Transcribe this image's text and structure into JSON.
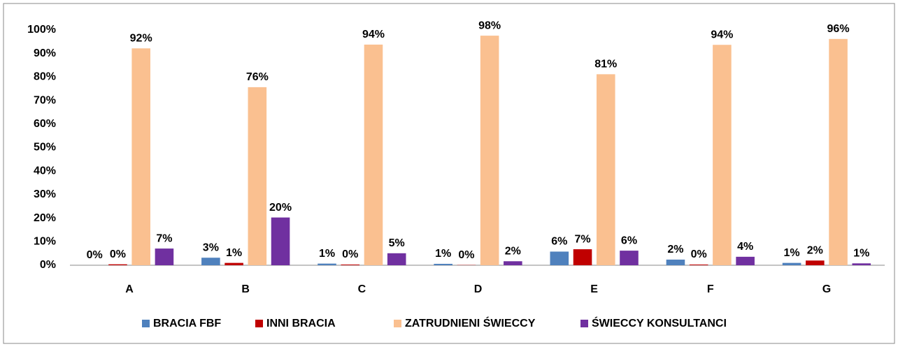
{
  "chart_data": {
    "type": "bar",
    "categories": [
      "A",
      "B",
      "C",
      "D",
      "E",
      "F",
      "G"
    ],
    "series": [
      {
        "name": "BRACIA FBF",
        "color": "#4f81bd",
        "values": [
          0,
          3.2,
          0.7,
          0.6,
          5.8,
          2.4,
          1.0
        ],
        "value_labels": [
          "0%",
          "3%",
          "1%",
          "1%",
          "6%",
          "2%",
          "1%"
        ]
      },
      {
        "name": "INNI BRACIA",
        "color": "#c00000",
        "values": [
          0.4,
          1.0,
          0.3,
          0.1,
          6.8,
          0.3,
          2.0
        ],
        "value_labels": [
          "0%",
          "1%",
          "0%",
          "0%",
          "7%",
          "0%",
          "2%"
        ]
      },
      {
        "name": "ZATRUDNIENI ŚWIECCY",
        "color": "#fac090",
        "values": [
          92.2,
          75.7,
          93.8,
          97.6,
          81.2,
          93.7,
          96.2
        ],
        "value_labels": [
          "92%",
          "76%",
          "94%",
          "98%",
          "81%",
          "94%",
          "96%"
        ]
      },
      {
        "name": "ŚWIECCY KONSULTANCI",
        "color": "#7030a0",
        "values": [
          7.1,
          20.3,
          5.1,
          1.7,
          6.2,
          3.6,
          0.8
        ],
        "value_labels": [
          "7%",
          "20%",
          "5%",
          "2%",
          "6%",
          "4%",
          "1%"
        ]
      }
    ],
    "ylim": [
      0,
      100
    ],
    "yticks": [
      {
        "value": 0,
        "label": "0%"
      },
      {
        "value": 10,
        "label": "10%"
      },
      {
        "value": 20,
        "label": "20%"
      },
      {
        "value": 30,
        "label": "30%"
      },
      {
        "value": 40,
        "label": "40%"
      },
      {
        "value": 50,
        "label": "50%"
      },
      {
        "value": 60,
        "label": "60%"
      },
      {
        "value": 70,
        "label": "70%"
      },
      {
        "value": 80,
        "label": "80%"
      },
      {
        "value": 90,
        "label": "90%"
      },
      {
        "value": 100,
        "label": "100%"
      }
    ],
    "grid": false,
    "legend": "bottom"
  }
}
